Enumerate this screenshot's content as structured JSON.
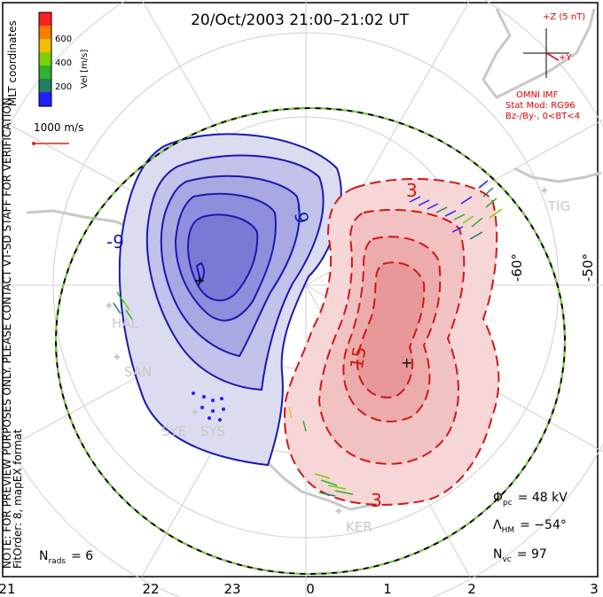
{
  "title": "20/Oct/2003 21:00–21:02 UT",
  "colorbar": {
    "unit_label": "Vel [m/s]",
    "ticks": [
      "600",
      "400",
      "200"
    ],
    "colors": [
      "#ff2020",
      "#ff7a00",
      "#f0c000",
      "#7ad000",
      "#30b030",
      "#208060",
      "#2020ff"
    ]
  },
  "coordinates_label": "MLT coordinates",
  "vector_scale": {
    "label": "1000 m/s",
    "color": "#e02020"
  },
  "imf": {
    "z_label": "+Z (5 nT)",
    "y_label": "+Y",
    "source": "OMNI IMF",
    "model": "Stat Mod: RG96",
    "condition": "Bz-/By-, 0<BT<4",
    "color": "#e00000"
  },
  "notice": "NOTE: FOR PREVIEW PURPOSES ONLY. PLEASE CONTACT VT-SD STAFF FOR VERIFICATION.",
  "fit_info": "FitOrder: 8, mapEX format",
  "mlt_labels": [
    "21",
    "22",
    "23",
    "0",
    "1",
    "2",
    "3"
  ],
  "lat_labels": [
    "-60°",
    "-50°"
  ],
  "contour_labels": {
    "neg_a": "-9",
    "neg_b": "-9",
    "pos_a": "3",
    "pos_b": "15",
    "pos_c": "3"
  },
  "stations": [
    "HAL",
    "SAN",
    "SYE",
    "SYS",
    "KER",
    "TIG"
  ],
  "stats": {
    "phi_symbol": "Φ",
    "phi_sub": "pc",
    "phi_value": "= 48 kV",
    "lambda_symbol": "Λ",
    "lambda_sub": "HM",
    "lambda_value": "= −54°",
    "nvc_symbol": "N",
    "nvc_sub": "vc",
    "nvc_value": "= 97",
    "nrads_symbol": "N",
    "nrads_sub": "rads",
    "nrads_value": "= 6"
  },
  "colors": {
    "negative_cell": "#1a1ab0",
    "positive_cell": "#d01818",
    "boundary_a": "#000000",
    "boundary_b": "#7ad040",
    "grid": "#d0d0d0",
    "coast": "#c8c8c8"
  }
}
